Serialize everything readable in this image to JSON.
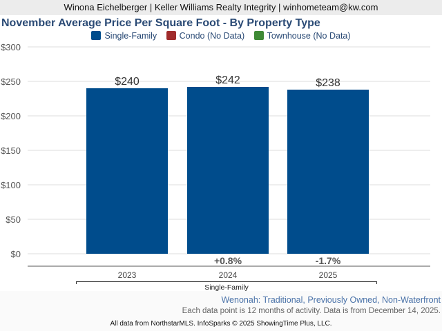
{
  "header": {
    "agent_line": "Winona Eichelberger | Keller Williams Realty Integrity | winhometeam@kw.com"
  },
  "chart_data": {
    "type": "bar",
    "title": "November Average Price Per Square Foot - By Property Type",
    "legend": [
      {
        "label": "Single-Family",
        "color": "#004c8c"
      },
      {
        "label": "Condo (No Data)",
        "color": "#a02c2c"
      },
      {
        "label": "Townhouse (No Data)",
        "color": "#3f8a35"
      }
    ],
    "legend_position": "top-center",
    "categories": [
      "2023",
      "2024",
      "2025"
    ],
    "group_label": "Single-Family",
    "series": [
      {
        "name": "Single-Family",
        "values": [
          240,
          242,
          238
        ],
        "data_labels": [
          "$240",
          "$242",
          "$238"
        ]
      }
    ],
    "changes": [
      "",
      "+0.8%",
      "-1.7%"
    ],
    "ylim": [
      0,
      300
    ],
    "yticks": [
      0,
      50,
      100,
      150,
      200,
      250,
      300
    ],
    "ytick_labels": [
      "$0",
      "$50",
      "$100",
      "$150",
      "$200",
      "$250",
      "$300"
    ],
    "grid": true
  },
  "footer": {
    "subtitle": "Wenonah: Traditional, Previously Owned, Non-Waterfront",
    "note": "Each data point is 12 months of activity. Data is from December 14, 2025.",
    "credit": "All data from NorthstarMLS. InfoSparks © 2025 ShowingTime Plus, LLC."
  }
}
